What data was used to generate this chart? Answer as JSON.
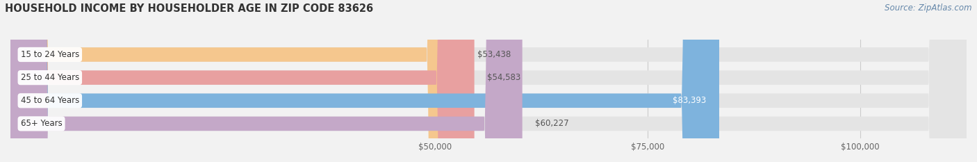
{
  "title": "HOUSEHOLD INCOME BY HOUSEHOLDER AGE IN ZIP CODE 83626",
  "source": "Source: ZipAtlas.com",
  "categories": [
    "15 to 24 Years",
    "25 to 44 Years",
    "45 to 64 Years",
    "65+ Years"
  ],
  "values": [
    53438,
    54583,
    83393,
    60227
  ],
  "bar_colors": [
    "#F5C78E",
    "#E8A0A0",
    "#7EB3DD",
    "#C4A8C8"
  ],
  "bar_label_colors": [
    "#555555",
    "#555555",
    "#ffffff",
    "#555555"
  ],
  "value_labels": [
    "$53,438",
    "$54,583",
    "$83,393",
    "$60,227"
  ],
  "xlim": [
    0,
    112500
  ],
  "xticks": [
    50000,
    75000,
    100000
  ],
  "xtick_labels": [
    "$50,000",
    "$75,000",
    "$100,000"
  ],
  "background_color": "#f2f2f2",
  "bar_bg_color": "#e4e4e4",
  "title_fontsize": 10.5,
  "source_fontsize": 8.5,
  "bar_height": 0.62,
  "figsize": [
    14.06,
    2.33
  ],
  "dpi": 100
}
